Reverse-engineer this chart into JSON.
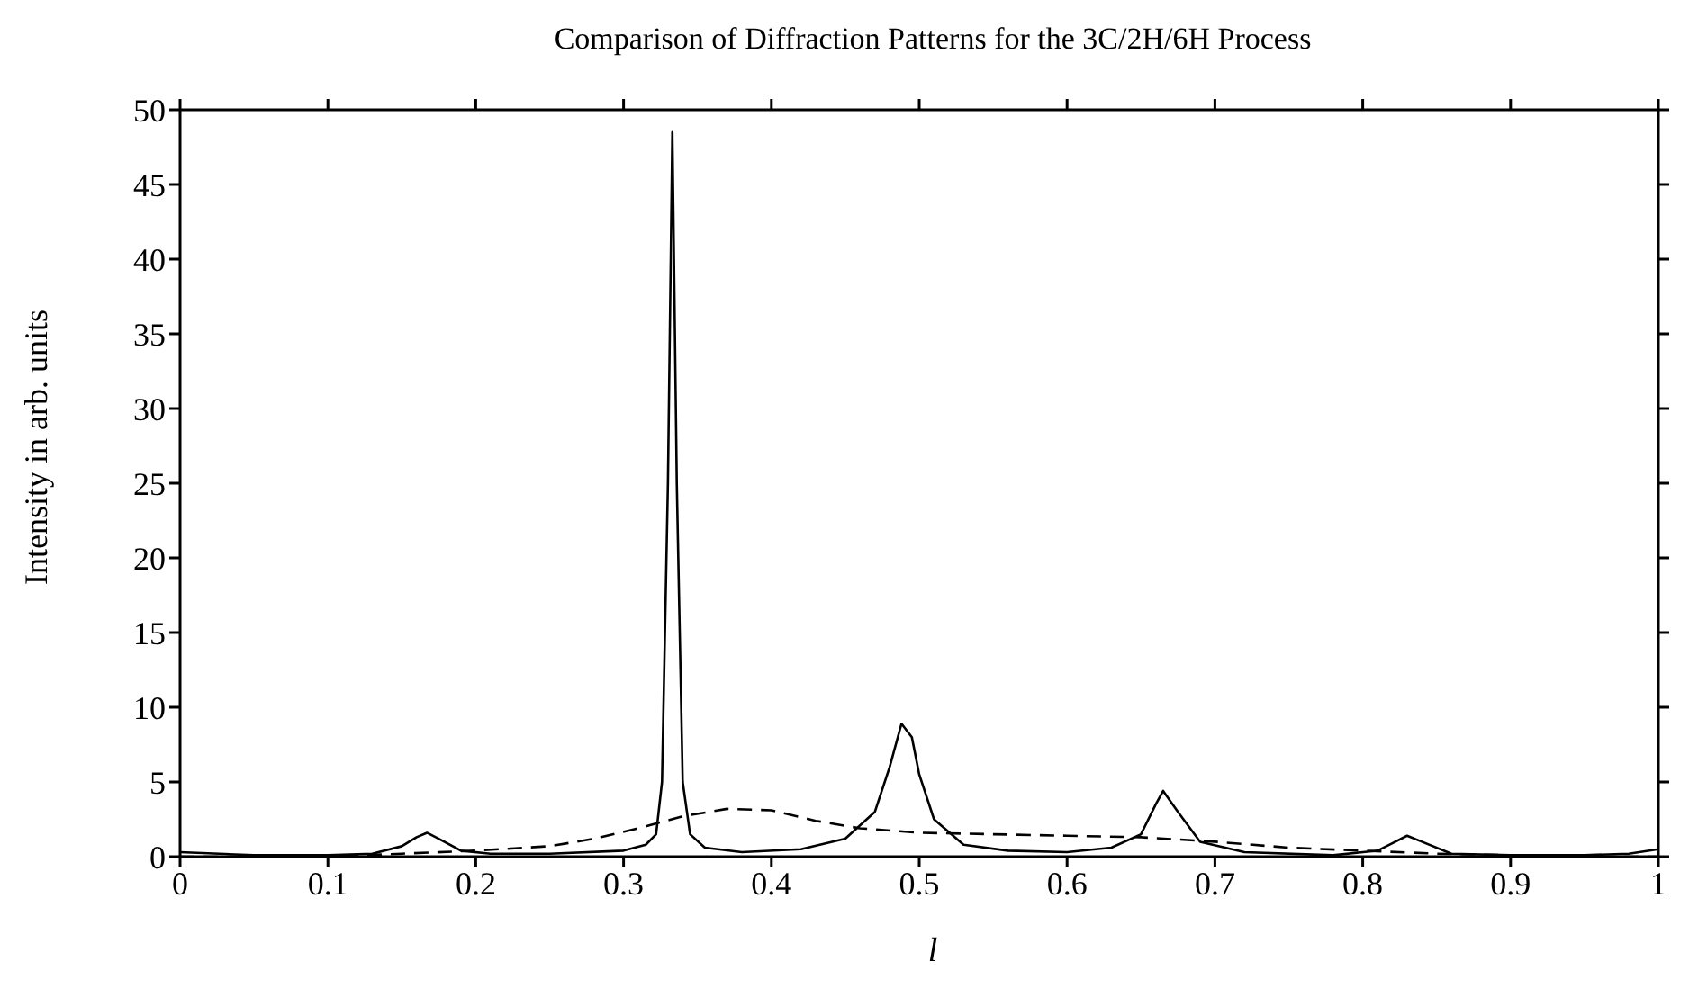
{
  "chart_data": {
    "type": "line",
    "title": "Comparison of Diffraction Patterns for the 3C/2H/6H Process",
    "xlabel": "l",
    "ylabel": "Intensity in arb. units",
    "xlim": [
      0,
      1
    ],
    "xticks": [
      0,
      0.1,
      0.2,
      0.3,
      0.4,
      0.5,
      0.6,
      0.7,
      0.8,
      0.9,
      1
    ],
    "ylim": [
      0,
      50
    ],
    "yticks": [
      0,
      5,
      10,
      15,
      20,
      25,
      30,
      35,
      40,
      45,
      50
    ],
    "grid": false,
    "legend": false,
    "marker": "none",
    "series": [
      {
        "color": "#000000",
        "line_style": "solid",
        "x": [
          0,
          0.05,
          0.1,
          0.13,
          0.15,
          0.16,
          0.167,
          0.175,
          0.19,
          0.21,
          0.25,
          0.3,
          0.315,
          0.322,
          0.326,
          0.33,
          0.333,
          0.336,
          0.34,
          0.345,
          0.355,
          0.38,
          0.42,
          0.45,
          0.47,
          0.48,
          0.488,
          0.495,
          0.5,
          0.51,
          0.53,
          0.56,
          0.6,
          0.63,
          0.65,
          0.66,
          0.665,
          0.675,
          0.69,
          0.72,
          0.78,
          0.81,
          0.82,
          0.83,
          0.84,
          0.86,
          0.9,
          0.95,
          0.98,
          1
        ],
        "values": [
          0.3,
          0.1,
          0.1,
          0.2,
          0.7,
          1.3,
          1.6,
          1.2,
          0.4,
          0.2,
          0.2,
          0.4,
          0.8,
          1.5,
          5,
          25,
          48.5,
          25,
          5,
          1.5,
          0.6,
          0.3,
          0.5,
          1.2,
          3,
          6,
          8.9,
          8,
          5.5,
          2.5,
          0.8,
          0.4,
          0.3,
          0.6,
          1.5,
          3.5,
          4.4,
          3,
          1,
          0.3,
          0.1,
          0.4,
          0.9,
          1.4,
          1,
          0.2,
          0.1,
          0.1,
          0.2,
          0.5
        ]
      },
      {
        "color": "#000000",
        "line_style": "dashed",
        "x": [
          0,
          0.1,
          0.15,
          0.2,
          0.25,
          0.28,
          0.31,
          0.34,
          0.37,
          0.4,
          0.43,
          0.46,
          0.5,
          0.55,
          0.6,
          0.65,
          0.7,
          0.75,
          0.8,
          0.85,
          0.9,
          0.95,
          1
        ],
        "values": [
          0,
          0,
          0.2,
          0.4,
          0.7,
          1.2,
          1.9,
          2.7,
          3.2,
          3.1,
          2.4,
          1.9,
          1.6,
          1.5,
          1.4,
          1.3,
          1.0,
          0.6,
          0.4,
          0.2,
          0.1,
          0,
          0
        ]
      }
    ]
  }
}
